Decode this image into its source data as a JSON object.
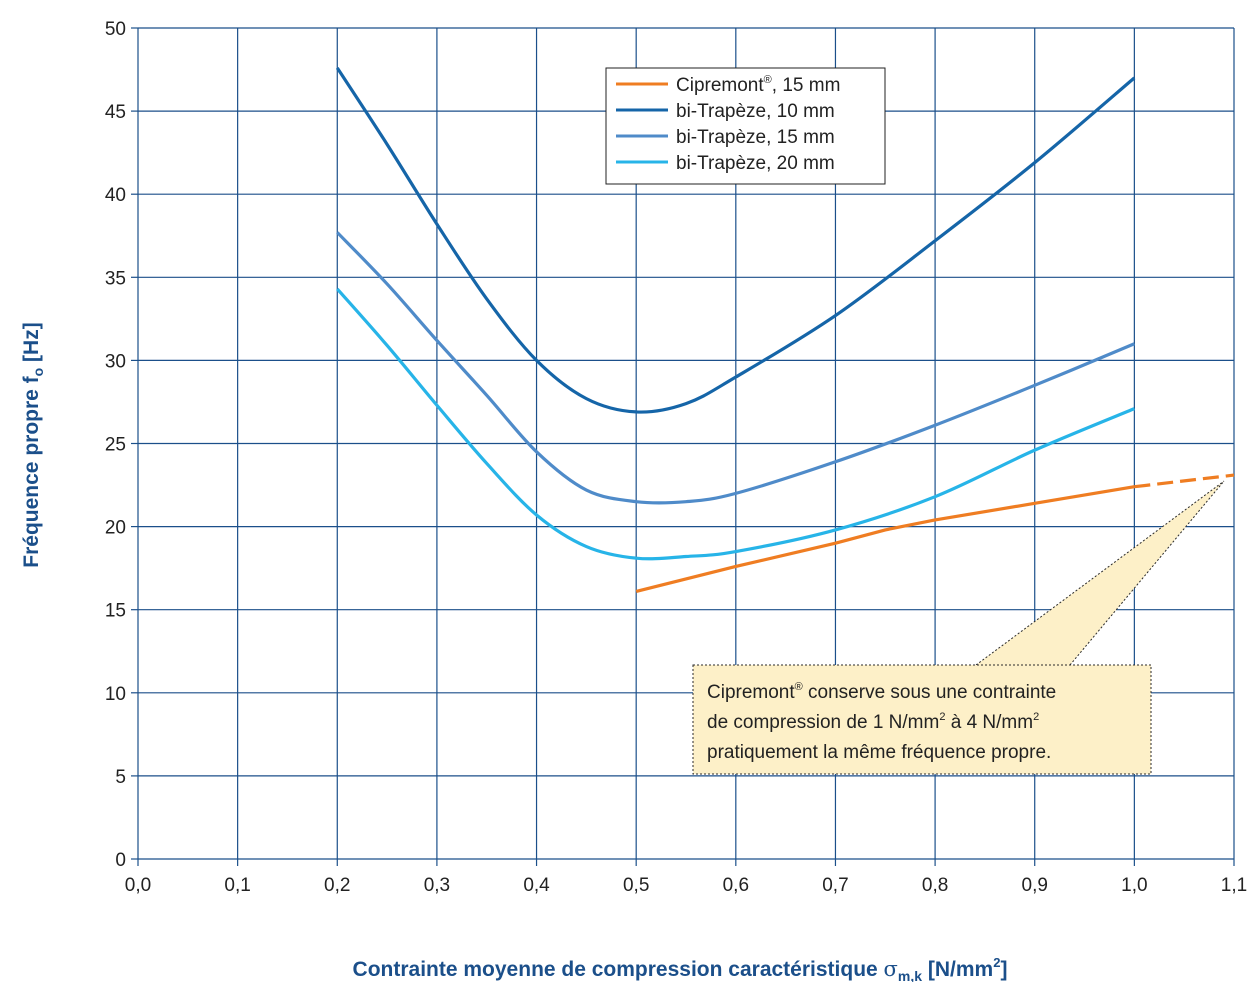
{
  "chart_data": {
    "type": "line",
    "xlabel": "Contrainte moyenne de compression caractéristique",
    "xlabel_symbol": "σ",
    "xlabel_subscript": "m,k",
    "xlabel_unit_open": "[N/mm",
    "xlabel_unit_sup": "2",
    "xlabel_unit_close": "]",
    "ylabel": "Fréquence propre f",
    "ylabel_subscript": "o",
    "ylabel_unit": "[Hz]",
    "xlim": [
      0.0,
      1.1
    ],
    "ylim": [
      0,
      50
    ],
    "grid": true,
    "x_ticks": [
      0.0,
      0.1,
      0.2,
      0.3,
      0.4,
      0.5,
      0.6,
      0.7,
      0.8,
      0.9,
      1.0,
      1.1
    ],
    "x_tick_labels": [
      "0,0",
      "0,1",
      "0,2",
      "0,3",
      "0,4",
      "0,5",
      "0,6",
      "0,7",
      "0,8",
      "0,9",
      "1,0",
      "1,1"
    ],
    "y_ticks": [
      0,
      5,
      10,
      15,
      20,
      25,
      30,
      35,
      40,
      45,
      50
    ],
    "y_tick_labels": [
      "0",
      "5",
      "10",
      "15",
      "20",
      "25",
      "30",
      "35",
      "40",
      "45",
      "50"
    ],
    "legend_position": "top-center",
    "series": [
      {
        "name": "Cipremont®, 15 mm",
        "legend_name": "Cipremont",
        "legend_sup": "®",
        "legend_suffix": ", 15 mm",
        "color": "#ef7d22",
        "x": [
          0.5,
          0.6,
          0.7,
          0.75,
          0.8,
          0.9,
          1.0
        ],
        "y": [
          16.1,
          17.6,
          19.0,
          19.8,
          20.4,
          21.4,
          22.4
        ],
        "extension": {
          "x": [
            1.0,
            1.1
          ],
          "y": [
            22.4,
            23.1
          ],
          "dashed": true
        }
      },
      {
        "name": "bi-Trapèze, 10 mm",
        "color": "#1565a8",
        "x": [
          0.2,
          0.25,
          0.3,
          0.35,
          0.4,
          0.45,
          0.5,
          0.55,
          0.6,
          0.7,
          0.8,
          0.9,
          1.0
        ],
        "y": [
          47.6,
          43.0,
          38.2,
          33.7,
          30.0,
          27.7,
          26.9,
          27.4,
          29.0,
          32.7,
          37.2,
          41.9,
          47.0
        ]
      },
      {
        "name": "bi-Trapèze, 15 mm",
        "color": "#4f8bc9",
        "x": [
          0.2,
          0.25,
          0.3,
          0.35,
          0.4,
          0.45,
          0.5,
          0.55,
          0.6,
          0.7,
          0.8,
          0.9,
          1.0
        ],
        "y": [
          37.7,
          34.6,
          31.2,
          27.9,
          24.5,
          22.2,
          21.5,
          21.5,
          22.0,
          23.9,
          26.1,
          28.5,
          31.0
        ]
      },
      {
        "name": "bi-Trapèze, 20 mm",
        "color": "#27b4e8",
        "x": [
          0.2,
          0.25,
          0.3,
          0.35,
          0.4,
          0.45,
          0.5,
          0.55,
          0.6,
          0.7,
          0.8,
          0.9,
          1.0
        ],
        "y": [
          34.3,
          30.9,
          27.3,
          23.8,
          20.7,
          18.8,
          18.1,
          18.2,
          18.5,
          19.8,
          21.8,
          24.6,
          27.1
        ]
      }
    ],
    "annotation": {
      "line1_a": "Cipremont",
      "line1_sup": "®",
      "line1_b": " conserve sous une contrainte",
      "line2_a": "de compression de 1 N/mm",
      "line2_sup1": "2",
      "line2_b": " à 4 N/mm",
      "line2_sup2": "2",
      "line3": "pratiquement la même fréquence propre.",
      "background": "#fdf0c8",
      "points_to": {
        "x": 1.1,
        "y": 23.1
      }
    },
    "colors": {
      "grid": "#1b4f8a",
      "axis_title": "#1b4f8a"
    }
  }
}
